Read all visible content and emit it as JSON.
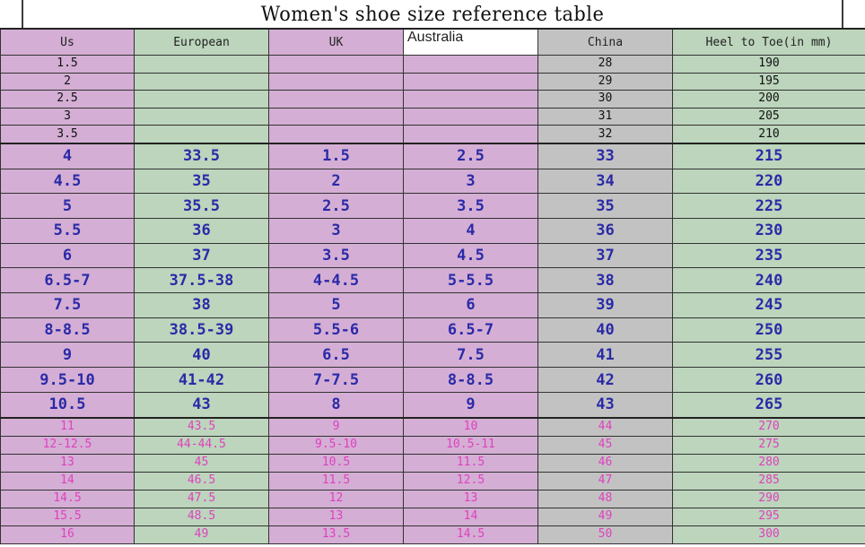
{
  "title": "Women's shoe size reference table",
  "headers": [
    "Us",
    "European",
    "UK",
    "Australia",
    "China",
    "Heel to Toe(in mm)"
  ],
  "small_rows": [
    [
      "1.5",
      "",
      "",
      "",
      "28",
      "190"
    ],
    [
      "2",
      "",
      "",
      "",
      "29",
      "195"
    ],
    [
      "2.5",
      "",
      "",
      "",
      "30",
      "200"
    ],
    [
      "3",
      "",
      "",
      "",
      "31",
      "205"
    ],
    [
      "3.5",
      "",
      "",
      "",
      "32",
      "210"
    ]
  ],
  "main_rows": [
    [
      "4",
      "33.5",
      "1.5",
      "2.5",
      "33",
      "215"
    ],
    [
      "4.5",
      "35",
      "2",
      "3",
      "34",
      "220"
    ],
    [
      "5",
      "35.5",
      "2.5",
      "3.5",
      "35",
      "225"
    ],
    [
      "5.5",
      "36",
      "3",
      "4",
      "36",
      "230"
    ],
    [
      "6",
      "37",
      "3.5",
      "4.5",
      "37",
      "235"
    ],
    [
      "6.5-7",
      "37.5-38",
      "4-4.5",
      "5-5.5",
      "38",
      "240"
    ],
    [
      "7.5",
      "38",
      "5",
      "6",
      "39",
      "245"
    ],
    [
      "8-8.5",
      "38.5-39",
      "5.5-6",
      "6.5-7",
      "40",
      "250"
    ],
    [
      "9",
      "40",
      "6.5",
      "7.5",
      "41",
      "255"
    ],
    [
      "9.5-10",
      "41-42",
      "7-7.5",
      "8-8.5",
      "42",
      "260"
    ],
    [
      "10.5",
      "43",
      "8",
      "9",
      "43",
      "265"
    ]
  ],
  "large_rows": [
    [
      "11",
      "43.5",
      "9",
      "10",
      "44",
      "270"
    ],
    [
      "12-12.5",
      "44-44.5",
      "9.5-10",
      "10.5-11",
      "45",
      "275"
    ],
    [
      "13",
      "45",
      "10.5",
      "11.5",
      "46",
      "280"
    ],
    [
      "14",
      "46.5",
      "11.5",
      "12.5",
      "47",
      "285"
    ],
    [
      "14.5",
      "47.5",
      "12",
      "13",
      "48",
      "290"
    ],
    [
      "15.5",
      "48.5",
      "13",
      "14",
      "49",
      "295"
    ],
    [
      "16",
      "49",
      "13.5",
      "14.5",
      "50",
      "300"
    ]
  ],
  "colors": {
    "pink": "#d4aed4",
    "green": "#bcd5bc",
    "gray": "#c2c2c2",
    "main_text": "#2a2aa8",
    "large_text": "#e040c0"
  }
}
